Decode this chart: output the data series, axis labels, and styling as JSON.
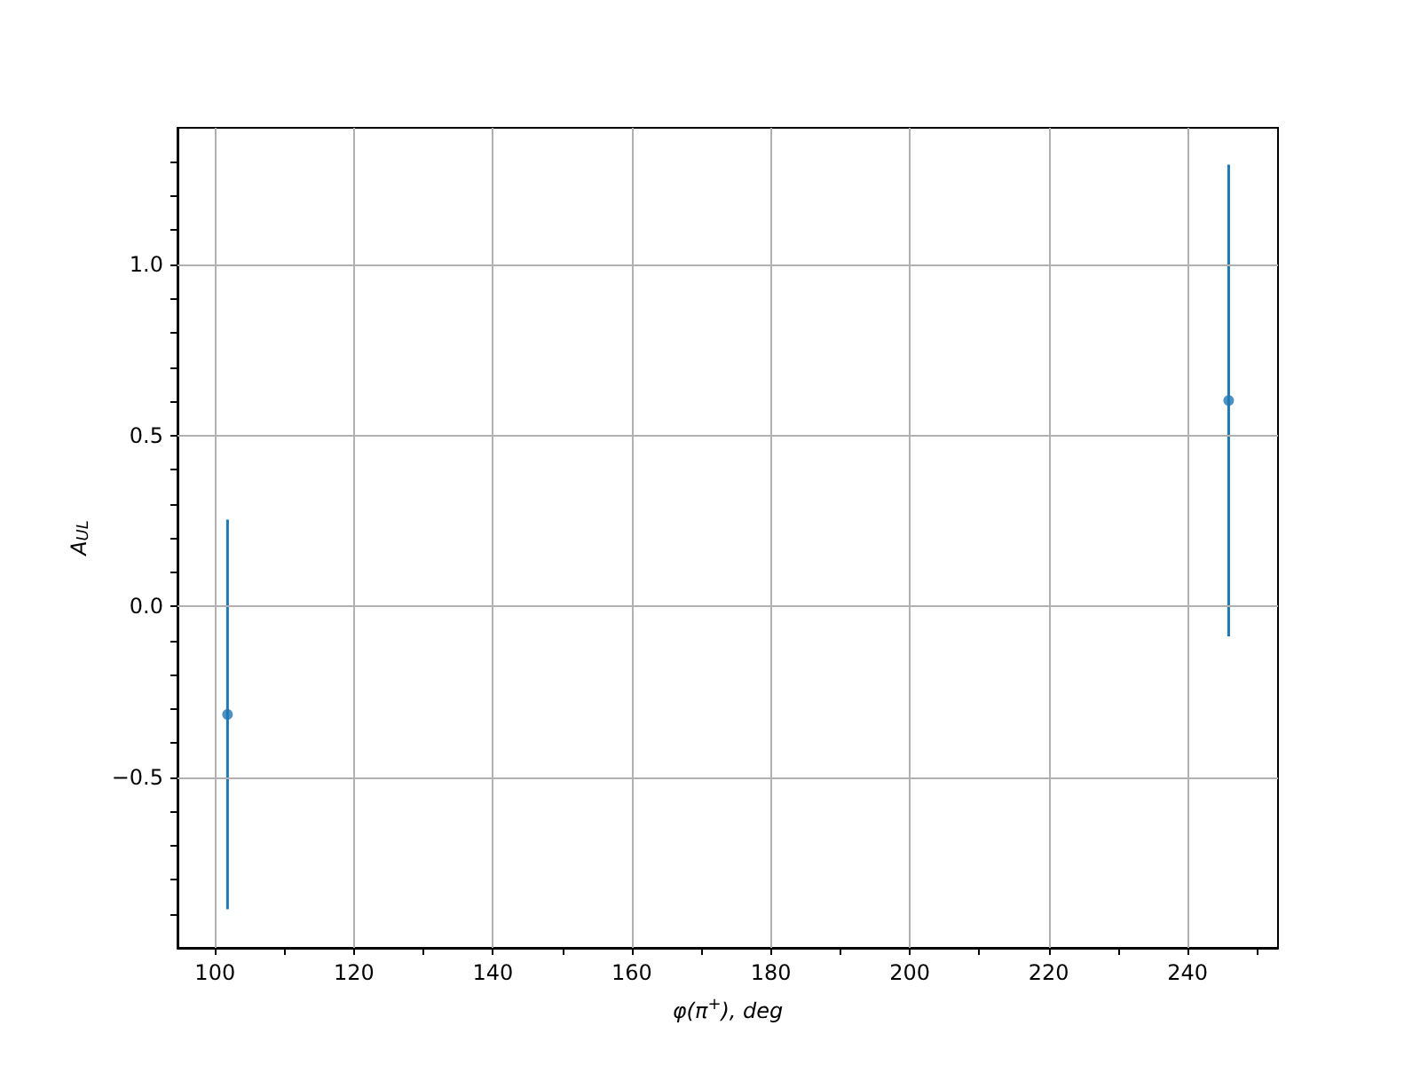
{
  "chart_data": {
    "type": "scatter",
    "xlabel": "φ(π$^{+}$), deg",
    "ylabel": "A$_{UL}$",
    "x": [
      101.8,
      245.9
    ],
    "series": [
      {
        "color": "#1f77b4",
        "values": [
          -0.317,
          0.602
        ],
        "errors": [
          0.57,
          0.69
        ]
      }
    ],
    "xlim": [
      94.6,
      253
    ],
    "xticks": [
      100,
      {
        "value": 110,
        "label": null
      },
      120,
      {
        "value": 130,
        "label": null
      },
      140,
      {
        "value": 150,
        "label": null
      },
      160,
      {
        "value": 170,
        "label": null
      },
      180,
      {
        "value": 190,
        "label": null
      },
      200,
      {
        "value": 210,
        "label": null
      },
      220,
      {
        "value": 230,
        "label": null
      },
      240,
      {
        "value": 250,
        "label": null
      }
    ],
    "ylim": [
      -1.0,
      1.4
    ],
    "yticks": [
      {
        "value": -0.9,
        "label": null
      },
      {
        "value": -0.8,
        "label": null
      },
      {
        "value": -0.7,
        "label": null
      },
      {
        "value": -0.6,
        "label": null
      },
      {
        "value": -0.5,
        "label": "−0.5"
      },
      {
        "value": -0.4,
        "label": null
      },
      {
        "value": -0.3,
        "label": null
      },
      {
        "value": -0.2,
        "label": null
      },
      {
        "value": -0.1,
        "label": null
      },
      {
        "value": 0,
        "label": "0.0"
      },
      {
        "value": 0.1,
        "label": null
      },
      {
        "value": 0.2,
        "label": null
      },
      {
        "value": 0.3,
        "label": null
      },
      {
        "value": 0.4,
        "label": null
      },
      {
        "value": 0.5,
        "label": "0.5"
      },
      {
        "value": 0.6,
        "label": null
      },
      {
        "value": 0.7,
        "label": null
      },
      {
        "value": 0.8,
        "label": null
      },
      {
        "value": 0.9,
        "label": null
      },
      {
        "value": 1.0,
        "label": "1.0"
      },
      {
        "value": 1.1,
        "label": null
      },
      {
        "value": 1.2,
        "label": null
      },
      {
        "value": 1.3,
        "label": null
      }
    ],
    "grid": true,
    "marker": "circle"
  }
}
